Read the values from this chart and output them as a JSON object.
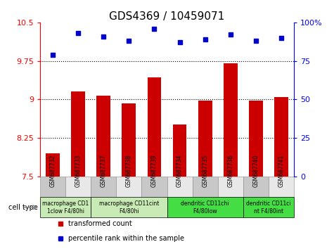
{
  "title": "GDS4369 / 10459071",
  "samples": [
    "GSM687732",
    "GSM687733",
    "GSM687737",
    "GSM687738",
    "GSM687739",
    "GSM687734",
    "GSM687735",
    "GSM687736",
    "GSM687740",
    "GSM687741"
  ],
  "transformed_count": [
    7.95,
    9.15,
    9.07,
    8.93,
    9.43,
    8.52,
    8.98,
    9.7,
    8.98,
    9.05
  ],
  "percentile_rank": [
    79,
    93,
    91,
    88,
    96,
    87,
    89,
    92,
    88,
    90
  ],
  "ylim_left": [
    7.5,
    10.5
  ],
  "ylim_right": [
    0,
    100
  ],
  "yticks_left": [
    7.5,
    8.25,
    9.0,
    9.75,
    10.5
  ],
  "yticks_right": [
    0,
    25,
    50,
    75,
    100
  ],
  "ytick_labels_left": [
    "7.5",
    "8.25",
    "9",
    "9.75",
    "10.5"
  ],
  "ytick_labels_right": [
    "0",
    "25",
    "50",
    "75",
    "100%"
  ],
  "bar_color": "#cc0000",
  "dot_color": "#0000cc",
  "cell_type_groups": [
    {
      "label": "macrophage CD1\n1clow F4/80hi",
      "start": 0,
      "end": 2,
      "color": "#c8eab4"
    },
    {
      "label": "macrophage CD11cint\nF4/80hi",
      "start": 2,
      "end": 5,
      "color": "#c8eab4"
    },
    {
      "label": "dendritic CD11chi\nF4/80low",
      "start": 5,
      "end": 8,
      "color": "#44dd44"
    },
    {
      "label": "dendritic CD11ci\nnt F4/80int",
      "start": 8,
      "end": 10,
      "color": "#44dd44"
    }
  ],
  "legend_items": [
    {
      "label": "transformed count",
      "color": "#cc0000"
    },
    {
      "label": "percentile rank within the sample",
      "color": "#0000cc"
    }
  ],
  "xtick_bg_colors": [
    "#c8c8c8",
    "#e8e8e8",
    "#c8c8c8",
    "#e8e8e8",
    "#c8c8c8",
    "#e8e8e8",
    "#c8c8c8",
    "#e8e8e8",
    "#c8c8c8",
    "#e8e8e8"
  ]
}
